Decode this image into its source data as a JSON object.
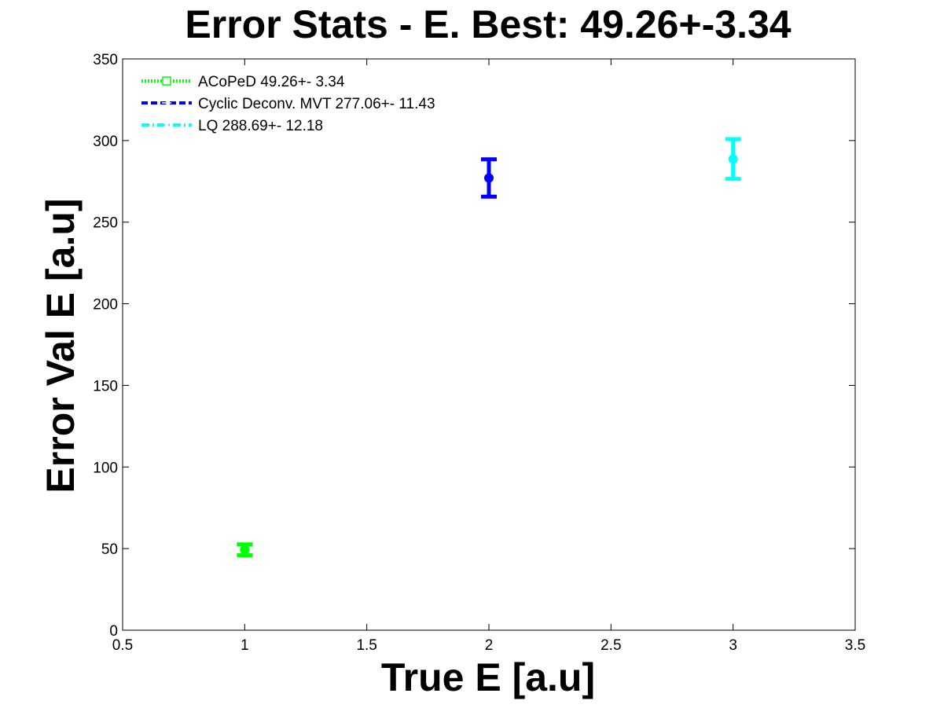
{
  "chart_data": {
    "type": "scatter",
    "title": "Error Stats - E. Best: 49.26+-3.34",
    "xlabel": "True E [a.u]",
    "ylabel": "Error Val E [a.u]",
    "xlim": [
      0.5,
      3.5
    ],
    "ylim": [
      0,
      350
    ],
    "xticks": [
      "0.5",
      "1",
      "1.5",
      "2",
      "2.5",
      "3",
      "3.5"
    ],
    "xtick_values": [
      0.5,
      1,
      1.5,
      2,
      2.5,
      3,
      3.5
    ],
    "yticks": [
      "0",
      "50",
      "100",
      "150",
      "200",
      "250",
      "300",
      "350"
    ],
    "ytick_values": [
      0,
      50,
      100,
      150,
      200,
      250,
      300,
      350
    ],
    "grid": false,
    "legend_position": "top-left",
    "series": [
      {
        "name": "ACoPeD 49.26+- 3.34",
        "x": 1,
        "y": 49.26,
        "err": 3.34,
        "color": "#00ff00",
        "marker": "square",
        "line_style": "dotted"
      },
      {
        "name": "Cyclic Deconv. MVT 277.06+- 11.43",
        "x": 2,
        "y": 277.06,
        "err": 11.43,
        "color": "#0000ff",
        "marker": "plus",
        "line_style": "dashed"
      },
      {
        "name": "LQ 288.69+- 12.18",
        "x": 3,
        "y": 288.69,
        "err": 12.18,
        "color": "#00ffff",
        "marker": "star",
        "line_style": "dashdot"
      }
    ]
  }
}
